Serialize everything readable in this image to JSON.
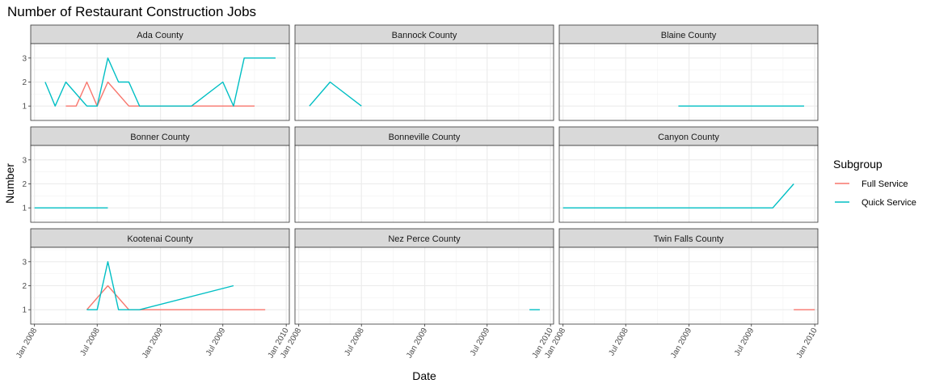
{
  "chart_data": {
    "type": "line",
    "title": "Number of Restaurant Construction Jobs",
    "xlabel": "Date",
    "ylabel": "Number",
    "xlim": [
      "2007-12-21",
      "2010-01-10"
    ],
    "ylim": [
      0.4,
      3.6
    ],
    "x_ticks": [
      "2008-01-01",
      "2008-07-01",
      "2009-01-01",
      "2009-07-01",
      "2010-01-01"
    ],
    "x_tick_labels": [
      "Jan 2008",
      "Jul 2008",
      "Jan 2009",
      "Jul 2009",
      "Jan 2010"
    ],
    "y_ticks": [
      1,
      2,
      3
    ],
    "y_tick_labels": [
      "1",
      "2",
      "3"
    ],
    "grid": true,
    "legend": {
      "title": "Subgroup",
      "position": "right",
      "entries": [
        {
          "name": "Full Service",
          "color": "#F8766D"
        },
        {
          "name": "Quick Service",
          "color": "#00BFC4"
        }
      ]
    },
    "facet_layout": {
      "rows": 3,
      "cols": 3
    },
    "panels": [
      {
        "name": "Ada County",
        "series": [
          {
            "name": "Full Service",
            "color": "#F8766D",
            "x": [
              "2008-04-01",
              "2008-05-01",
              "2008-06-01",
              "2008-07-01",
              "2008-08-01",
              "2008-10-01",
              "2008-11-01",
              "2009-01-01",
              "2009-03-01",
              "2009-06-01",
              "2009-10-01"
            ],
            "y": [
              1,
              1,
              2,
              1,
              2,
              1,
              1,
              1,
              1,
              1,
              1
            ]
          },
          {
            "name": "Quick Service",
            "color": "#00BFC4",
            "x": [
              "2008-02-01",
              "2008-03-01",
              "2008-04-01",
              "2008-06-01",
              "2008-07-01",
              "2008-08-01",
              "2008-09-01",
              "2008-10-01",
              "2008-11-01",
              "2009-04-01",
              "2009-07-01",
              "2009-08-01",
              "2009-09-01",
              "2009-12-01"
            ],
            "y": [
              2,
              1,
              2,
              1,
              1,
              3,
              2,
              2,
              1,
              1,
              2,
              1,
              3,
              3
            ]
          }
        ]
      },
      {
        "name": "Bannock County",
        "series": [
          {
            "name": "Quick Service",
            "color": "#00BFC4",
            "x": [
              "2008-02-01",
              "2008-04-01",
              "2008-07-01"
            ],
            "y": [
              1,
              2,
              1
            ]
          }
        ]
      },
      {
        "name": "Blaine County",
        "series": [
          {
            "name": "Quick Service",
            "color": "#00BFC4",
            "x": [
              "2008-12-01",
              "2009-12-01"
            ],
            "y": [
              1,
              1
            ]
          }
        ]
      },
      {
        "name": "Bonner County",
        "series": [
          {
            "name": "Quick Service",
            "color": "#00BFC4",
            "x": [
              "2008-01-01",
              "2008-08-01"
            ],
            "y": [
              1,
              1
            ]
          }
        ]
      },
      {
        "name": "Bonneville County",
        "series": []
      },
      {
        "name": "Canyon County",
        "series": [
          {
            "name": "Quick Service",
            "color": "#00BFC4",
            "x": [
              "2008-01-01",
              "2009-09-01",
              "2009-11-01"
            ],
            "y": [
              1,
              1,
              2
            ]
          }
        ]
      },
      {
        "name": "Kootenai County",
        "series": [
          {
            "name": "Full Service",
            "color": "#F8766D",
            "x": [
              "2008-06-01",
              "2008-08-01",
              "2008-10-01",
              "2008-11-01",
              "2009-01-01",
              "2009-11-01"
            ],
            "y": [
              1,
              2,
              1,
              1,
              1,
              1
            ]
          },
          {
            "name": "Quick Service",
            "color": "#00BFC4",
            "x": [
              "2008-06-01",
              "2008-07-01",
              "2008-08-01",
              "2008-09-01",
              "2008-11-01",
              "2009-08-01"
            ],
            "y": [
              1,
              1,
              3,
              1,
              1,
              2
            ]
          }
        ]
      },
      {
        "name": "Nez Perce County",
        "series": [
          {
            "name": "Quick Service",
            "color": "#00BFC4",
            "x": [
              "2009-11-01",
              "2009-12-01"
            ],
            "y": [
              1,
              1
            ]
          }
        ]
      },
      {
        "name": "Twin Falls County",
        "series": [
          {
            "name": "Full Service",
            "color": "#F8766D",
            "x": [
              "2009-11-01",
              "2010-01-01"
            ],
            "y": [
              1,
              1
            ]
          }
        ]
      }
    ]
  }
}
